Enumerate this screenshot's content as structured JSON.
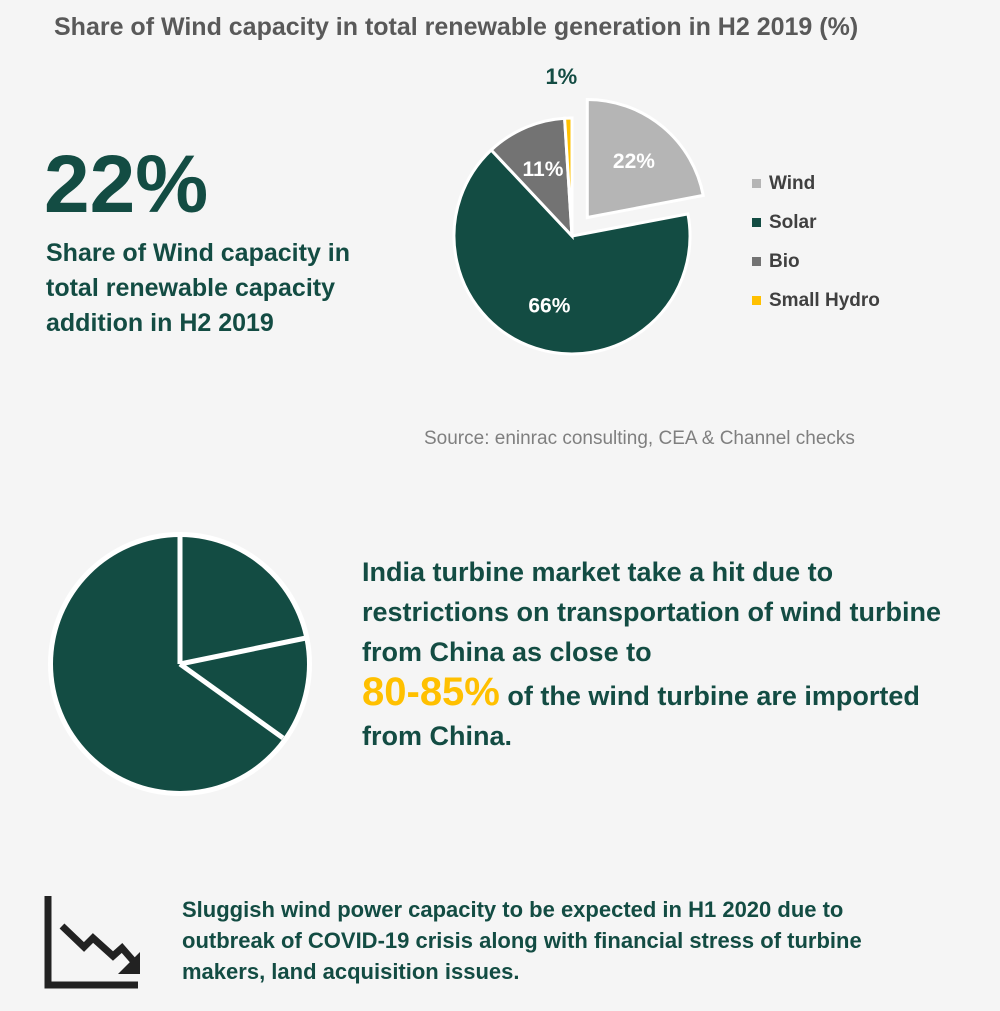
{
  "title": "Share of Wind capacity in total renewable generation in H2 2019 (%)",
  "highlight": {
    "value": "22%",
    "caption": "Share of Wind capacity in total renewable capacity addition in H2 2019"
  },
  "chart_data": {
    "type": "pie",
    "categories": [
      "Wind",
      "Solar",
      "Bio",
      "Small Hydro"
    ],
    "values": [
      22,
      66,
      11,
      1
    ],
    "labels": [
      "22%",
      "66%",
      "11%",
      "1%"
    ],
    "colors": [
      "#b5b5b5",
      "#134c43",
      "#737373",
      "#ffc000"
    ],
    "exploded": "Wind",
    "legend_position": "right"
  },
  "source": "Source: eninrac consulting, CEA & Channel checks",
  "statement": {
    "before": "India turbine market take a hit due to restrictions on transportation of wind turbine from China as close to",
    "highlight": "80-85%",
    "after": "of the wind turbine are imported from China."
  },
  "outlook": "Sluggish wind power capacity to be expected in H1 2020 due to outbreak of COVID-19 crisis along with financial stress of turbine makers, land acquisition issues.",
  "icons": {
    "pie": "pie-chart-icon",
    "trend": "declining-trend-icon"
  },
  "colors": {
    "accent": "#134c43",
    "highlight": "#ffc000"
  }
}
